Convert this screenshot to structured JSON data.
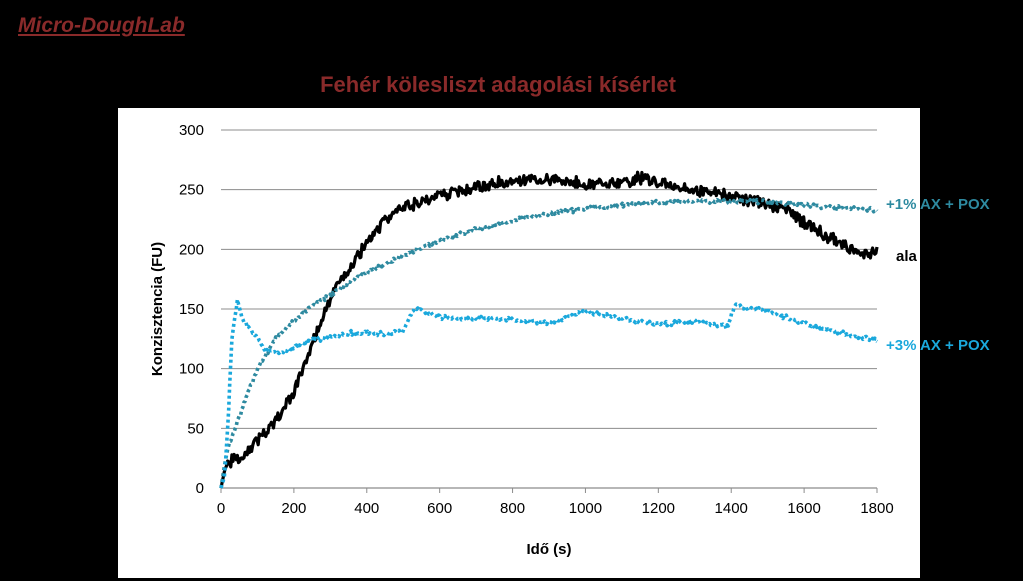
{
  "header": {
    "brand": "Micro-DoughLab",
    "title": "Fehér kölesliszt adagolási kísérlet"
  },
  "chart_data": {
    "type": "line",
    "title": "Fehér kölesliszt adagolási kísérlet",
    "xlabel": "Idő (s)",
    "ylabel": "Konzisztencia (FU)",
    "xlim": [
      0,
      1800
    ],
    "ylim": [
      0,
      300
    ],
    "xticks": [
      0,
      200,
      400,
      600,
      800,
      1000,
      1200,
      1400,
      1600,
      1800
    ],
    "yticks": [
      0,
      50,
      100,
      150,
      200,
      250,
      300
    ],
    "grid": "horizontal",
    "legend": "labels at right end of lines",
    "series": [
      {
        "name": "ala",
        "color": "#000000",
        "style": "solid-noisy",
        "x": [
          0,
          10,
          20,
          50,
          100,
          150,
          200,
          250,
          300,
          350,
          400,
          450,
          500,
          550,
          600,
          700,
          800,
          850,
          900,
          1000,
          1100,
          1150,
          1200,
          1300,
          1400,
          1500,
          1550,
          1600,
          1700,
          1750,
          1800
        ],
        "y": [
          0,
          15,
          22,
          25,
          40,
          55,
          80,
          120,
          160,
          182,
          205,
          225,
          235,
          240,
          245,
          252,
          258,
          260,
          258,
          255,
          255,
          260,
          255,
          250,
          245,
          238,
          235,
          222,
          205,
          195,
          198
        ]
      },
      {
        "name": "+1% AX + POX",
        "color": "#2e8aa0",
        "style": "dotted",
        "x": [
          0,
          10,
          20,
          50,
          100,
          150,
          200,
          250,
          300,
          350,
          400,
          500,
          600,
          700,
          800,
          900,
          1000,
          1100,
          1200,
          1300,
          1400,
          1500,
          1600,
          1700,
          1800
        ],
        "y": [
          0,
          20,
          35,
          60,
          100,
          125,
          140,
          152,
          162,
          172,
          180,
          195,
          207,
          217,
          224,
          230,
          234,
          237,
          239,
          240,
          240,
          240,
          237,
          235,
          233
        ]
      },
      {
        "name": "+3% AX + POX",
        "color": "#1aa8dc",
        "style": "dotted",
        "x": [
          0,
          10,
          20,
          30,
          45,
          60,
          90,
          120,
          160,
          200,
          250,
          300,
          350,
          400,
          450,
          500,
          530,
          560,
          600,
          700,
          800,
          900,
          1000,
          1100,
          1200,
          1300,
          1390,
          1410,
          1500,
          1600,
          1700,
          1800
        ],
        "y": [
          0,
          10,
          60,
          125,
          158,
          140,
          130,
          115,
          113,
          118,
          124,
          126,
          130,
          130,
          129,
          131,
          150,
          148,
          143,
          142,
          141,
          138,
          148,
          142,
          137,
          140,
          135,
          153,
          148,
          138,
          130,
          124
        ]
      }
    ]
  }
}
